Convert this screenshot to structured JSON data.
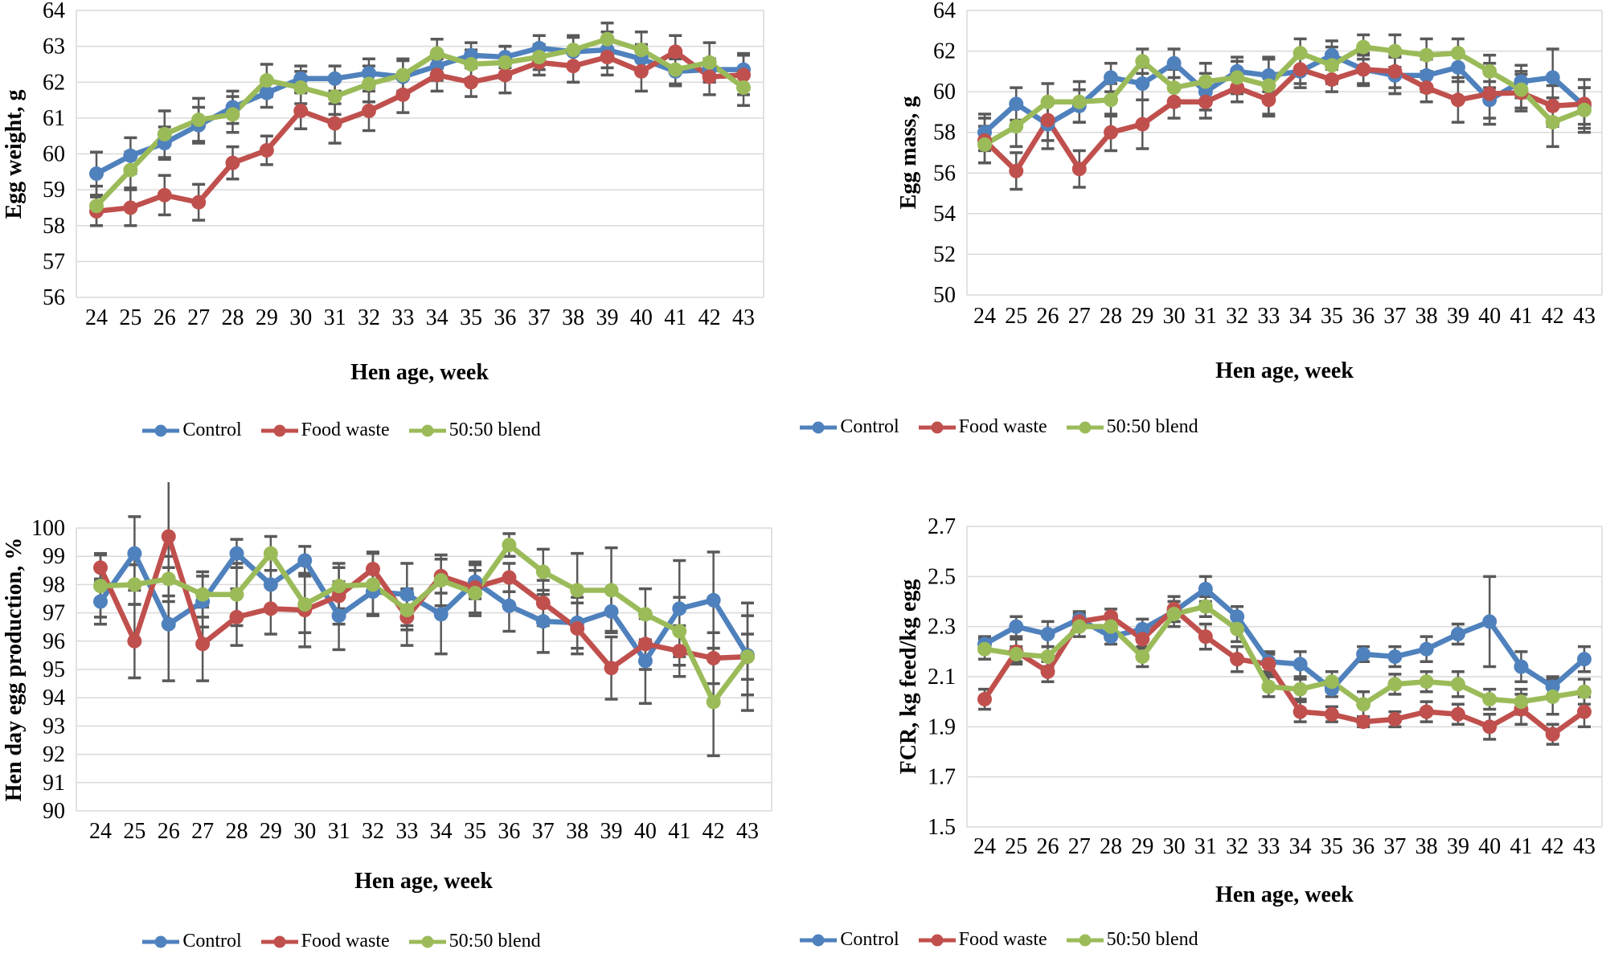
{
  "figure_title": "",
  "colors": {
    "control": "#4F81BD",
    "food_waste": "#C0504D",
    "blend": "#9BBB59",
    "error_bar": "#595959",
    "gridline": "#D9D9D9",
    "axis_line": "#BFBFBF"
  },
  "legend": {
    "items": [
      {
        "label": "Control",
        "color": "#4F81BD"
      },
      {
        "label": "Food waste",
        "color": "#C0504D"
      },
      {
        "label": "50:50 blend",
        "color": "#9BBB59"
      }
    ]
  },
  "chart_data": [
    {
      "id": "egg_weight",
      "type": "line",
      "title": "",
      "ylabel": "Egg weight, g",
      "xlabel": "Hen age, week",
      "ylim": [
        56,
        64
      ],
      "grid": true,
      "legend_position": "bottom",
      "error_bars": true,
      "marker": "circle",
      "ytick_values": [
        56,
        57,
        58,
        59,
        60,
        61,
        62,
        63,
        64
      ],
      "ytick_labels": [
        "56",
        "57",
        "58",
        "59",
        "60",
        "61",
        "62",
        "63",
        "64"
      ],
      "x_categories": [
        "24",
        "25",
        "26",
        "27",
        "28",
        "29",
        "30",
        "31",
        "32",
        "33",
        "34",
        "35",
        "36",
        "37",
        "38",
        "39",
        "40",
        "41",
        "42",
        "43"
      ],
      "series": [
        {
          "name": "Control",
          "color": "#4F81BD",
          "values": [
            59.45,
            59.95,
            60.3,
            60.8,
            61.3,
            61.7,
            62.1,
            62.1,
            62.25,
            62.15,
            62.45,
            62.75,
            62.7,
            62.95,
            62.85,
            62.9,
            62.65,
            62.3,
            62.35,
            62.35
          ],
          "errors": [
            0.6,
            0.5,
            0.45,
            0.5,
            0.45,
            0.4,
            0.35,
            0.35,
            0.4,
            0.45,
            0.4,
            0.35,
            0.3,
            0.35,
            0.4,
            0.5,
            0.4,
            0.35,
            0.3,
            0.45
          ]
        },
        {
          "name": "Food waste",
          "color": "#C0504D",
          "values": [
            58.4,
            58.5,
            58.85,
            58.65,
            59.75,
            60.1,
            61.2,
            60.85,
            61.2,
            61.65,
            62.2,
            62.0,
            62.2,
            62.55,
            62.45,
            62.7,
            62.3,
            62.85,
            62.15,
            62.2
          ],
          "errors": [
            0.4,
            0.5,
            0.55,
            0.5,
            0.45,
            0.4,
            0.5,
            0.55,
            0.55,
            0.5,
            0.45,
            0.4,
            0.5,
            0.35,
            0.45,
            0.5,
            0.55,
            0.45,
            0.5,
            0.55
          ]
        },
        {
          "name": "50:50 blend",
          "color": "#9BBB59",
          "values": [
            58.55,
            59.55,
            60.55,
            60.95,
            61.1,
            62.05,
            61.85,
            61.6,
            61.95,
            62.2,
            62.8,
            62.5,
            62.55,
            62.7,
            62.9,
            63.2,
            62.9,
            62.35,
            62.55,
            61.85
          ],
          "errors": [
            0.55,
            0.5,
            0.65,
            0.6,
            0.5,
            0.45,
            0.45,
            0.5,
            0.5,
            0.45,
            0.4,
            0.4,
            0.45,
            0.35,
            0.4,
            0.45,
            0.5,
            0.45,
            0.55,
            0.5
          ]
        }
      ]
    },
    {
      "id": "egg_mass",
      "type": "line",
      "title": "",
      "ylabel": "Egg mass, g",
      "xlabel": "Hen age, week",
      "ylim": [
        50,
        64
      ],
      "grid": true,
      "legend_position": "bottom",
      "error_bars": true,
      "marker": "circle",
      "ytick_values": [
        50,
        52,
        54,
        56,
        58,
        60,
        62,
        64
      ],
      "ytick_labels": [
        "50",
        "52",
        "54",
        "56",
        "58",
        "60",
        "62",
        "64"
      ],
      "x_categories": [
        "24",
        "25",
        "26",
        "27",
        "28",
        "29",
        "30",
        "31",
        "32",
        "33",
        "34",
        "35",
        "36",
        "37",
        "38",
        "39",
        "40",
        "41",
        "42",
        "43"
      ],
      "series": [
        {
          "name": "Control",
          "color": "#4F81BD",
          "values": [
            58.0,
            59.4,
            58.4,
            59.3,
            60.7,
            60.4,
            61.4,
            60.0,
            61.0,
            60.8,
            61.0,
            61.8,
            61.1,
            60.8,
            60.8,
            61.2,
            59.6,
            60.5,
            60.7,
            59.3
          ],
          "errors": [
            0.9,
            0.8,
            1.2,
            0.8,
            0.7,
            0.8,
            0.7,
            0.9,
            0.7,
            0.8,
            0.8,
            0.7,
            0.8,
            0.9,
            0.8,
            0.7,
            0.9,
            0.8,
            1.4,
            0.9
          ]
        },
        {
          "name": "Food waste",
          "color": "#C0504D",
          "values": [
            57.6,
            56.1,
            58.6,
            56.2,
            58.0,
            58.4,
            59.5,
            59.5,
            60.2,
            59.6,
            61.1,
            60.6,
            61.1,
            61.0,
            60.2,
            59.6,
            59.9,
            59.95,
            59.3,
            59.4
          ],
          "errors": [
            1.1,
            0.9,
            1.0,
            0.9,
            0.9,
            1.2,
            0.8,
            0.8,
            0.7,
            0.8,
            0.7,
            0.6,
            0.7,
            0.8,
            0.7,
            1.1,
            1.5,
            0.9,
            1.0,
            1.2
          ]
        },
        {
          "name": "50:50 blend",
          "color": "#9BBB59",
          "values": [
            57.4,
            58.3,
            59.5,
            59.5,
            59.6,
            61.5,
            60.2,
            60.5,
            60.7,
            60.3,
            61.9,
            61.3,
            62.2,
            62.0,
            61.8,
            61.9,
            61.0,
            60.1,
            58.5,
            59.1
          ],
          "errors": [
            0.9,
            1.0,
            0.9,
            1.0,
            0.8,
            0.6,
            0.9,
            0.9,
            0.8,
            1.4,
            0.7,
            0.9,
            0.6,
            0.8,
            0.8,
            0.7,
            0.8,
            0.9,
            1.2,
            1.1
          ]
        }
      ]
    },
    {
      "id": "hen_day_egg_production",
      "type": "line",
      "title": "",
      "ylabel": "Hen day egg production, %",
      "xlabel": "Hen age, week",
      "ylim": [
        90,
        100
      ],
      "grid": true,
      "legend_position": "bottom",
      "error_bars": true,
      "marker": "circle",
      "ytick_values": [
        90,
        91,
        92,
        93,
        94,
        95,
        96,
        97,
        98,
        99,
        100
      ],
      "ytick_labels": [
        "90",
        "91",
        "92",
        "93",
        "94",
        "95",
        "96",
        "97",
        "98",
        "99",
        "100"
      ],
      "x_categories": [
        "24",
        "25",
        "26",
        "27",
        "28",
        "29",
        "30",
        "31",
        "32",
        "33",
        "34",
        "35",
        "36",
        "37",
        "38",
        "39",
        "40",
        "41",
        "42",
        "43"
      ],
      "series": [
        {
          "name": "Control",
          "color": "#4F81BD",
          "values": [
            97.4,
            99.1,
            96.6,
            97.4,
            99.1,
            98.0,
            98.85,
            96.9,
            97.75,
            97.65,
            96.95,
            98.1,
            97.25,
            96.7,
            96.65,
            97.05,
            95.3,
            97.15,
            97.45,
            95.5
          ],
          "errors": [
            0.8,
            1.3,
            2.0,
            0.9,
            0.5,
            0.9,
            0.5,
            1.2,
            0.8,
            1.1,
            1.4,
            0.6,
            0.9,
            1.1,
            0.9,
            0.7,
            1.5,
            1.7,
            1.7,
            1.4
          ]
        },
        {
          "name": "Food waste",
          "color": "#C0504D",
          "values": [
            98.6,
            96.0,
            99.7,
            95.9,
            96.85,
            97.15,
            97.1,
            97.6,
            98.55,
            96.85,
            98.3,
            97.9,
            98.25,
            97.35,
            96.45,
            95.05,
            95.9,
            95.65,
            95.4,
            95.45
          ],
          "errors": [
            0.5,
            1.3,
            2.1,
            1.3,
            1.0,
            0.9,
            1.3,
            1.0,
            0.6,
            1.0,
            0.6,
            0.9,
            0.5,
            0.8,
            0.9,
            1.1,
            0.9,
            0.9,
            0.9,
            1.9
          ]
        },
        {
          "name": "50:50 blend",
          "color": "#9BBB59",
          "values": [
            97.95,
            98.0,
            98.2,
            97.65,
            97.65,
            99.1,
            97.3,
            97.95,
            98.0,
            97.1,
            98.15,
            97.7,
            99.4,
            98.45,
            97.8,
            97.8,
            96.95,
            96.35,
            93.85,
            95.45
          ],
          "errors": [
            1.1,
            0.7,
            0.8,
            0.8,
            1.1,
            0.6,
            1.0,
            0.8,
            1.1,
            0.7,
            0.9,
            0.8,
            0.4,
            0.8,
            1.3,
            1.5,
            0.9,
            1.2,
            1.9,
            0.8
          ]
        }
      ]
    },
    {
      "id": "fcr",
      "type": "line",
      "title": "",
      "ylabel": "FCR, kg feed/kg egg",
      "xlabel": "Hen age, week",
      "ylim": [
        1.5,
        2.7
      ],
      "grid": true,
      "legend_position": "bottom",
      "error_bars": true,
      "marker": "circle",
      "ytick_values": [
        1.5,
        1.7,
        1.9,
        2.1,
        2.3,
        2.5,
        2.7
      ],
      "ytick_labels": [
        "1.5",
        "1.7",
        "1.9",
        "2.1",
        "2.3",
        "2.5",
        "2.7"
      ],
      "x_categories": [
        "24",
        "25",
        "26",
        "27",
        "28",
        "29",
        "30",
        "31",
        "32",
        "33",
        "34",
        "35",
        "36",
        "37",
        "38",
        "39",
        "40",
        "41",
        "42",
        "43"
      ],
      "series": [
        {
          "name": "Control",
          "color": "#4F81BD",
          "values": [
            2.23,
            2.3,
            2.27,
            2.33,
            2.26,
            2.29,
            2.36,
            2.45,
            2.34,
            2.16,
            2.15,
            2.05,
            2.19,
            2.18,
            2.21,
            2.27,
            2.32,
            2.14,
            2.06,
            2.17
          ],
          "errors": [
            0.03,
            0.04,
            0.05,
            0.03,
            0.03,
            0.04,
            0.04,
            0.05,
            0.04,
            0.04,
            0.05,
            0.03,
            0.03,
            0.04,
            0.05,
            0.04,
            0.18,
            0.06,
            0.04,
            0.05
          ]
        },
        {
          "name": "Food waste",
          "color": "#C0504D",
          "values": [
            2.01,
            2.2,
            2.12,
            2.32,
            2.34,
            2.25,
            2.37,
            2.26,
            2.17,
            2.15,
            1.96,
            1.95,
            1.92,
            1.93,
            1.96,
            1.95,
            1.9,
            1.97,
            1.87,
            1.96
          ],
          "errors": [
            0.04,
            0.05,
            0.04,
            0.03,
            0.03,
            0.04,
            0.05,
            0.05,
            0.05,
            0.04,
            0.04,
            0.03,
            0.02,
            0.03,
            0.04,
            0.04,
            0.05,
            0.06,
            0.04,
            0.06
          ]
        },
        {
          "name": "50:50 blend",
          "color": "#9BBB59",
          "values": [
            2.21,
            2.19,
            2.18,
            2.3,
            2.3,
            2.18,
            2.35,
            2.38,
            2.29,
            2.06,
            2.05,
            2.08,
            1.99,
            2.07,
            2.08,
            2.07,
            2.01,
            2.0,
            2.02,
            2.04
          ],
          "errors": [
            0.04,
            0.03,
            0.04,
            0.04,
            0.05,
            0.04,
            0.05,
            0.04,
            0.05,
            0.04,
            0.04,
            0.04,
            0.05,
            0.04,
            0.04,
            0.05,
            0.04,
            0.05,
            0.07,
            0.05
          ]
        }
      ]
    }
  ]
}
